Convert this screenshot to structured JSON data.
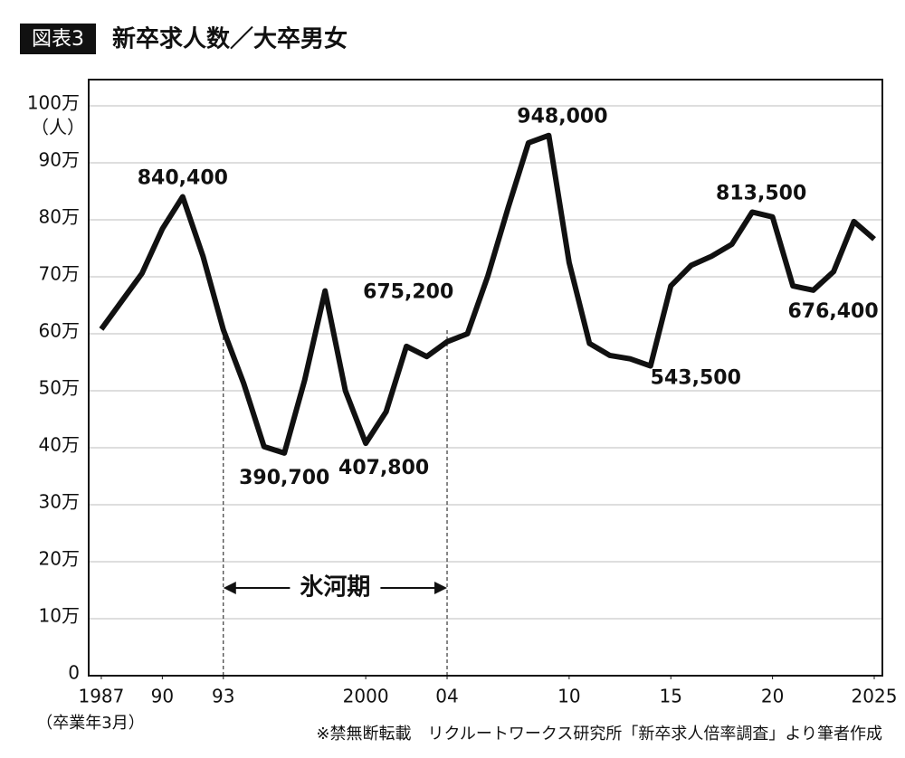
{
  "chart_data": {
    "type": "line",
    "tag": "図表3",
    "title": "新卒求人数／大卒男女",
    "y_unit": "（人）",
    "x_unit": "（卒業年3月）",
    "source": "※禁無断転載　リクルートワークス研究所「新卒求人倍率調査」より筆者作成",
    "x": [
      1987,
      1988,
      1989,
      1990,
      1991,
      1992,
      1993,
      1994,
      1995,
      1996,
      1997,
      1998,
      1999,
      2000,
      2001,
      2002,
      2003,
      2004,
      2005,
      2006,
      2007,
      2008,
      2009,
      2010,
      2011,
      2012,
      2013,
      2014,
      2015,
      2016,
      2017,
      2018,
      2019,
      2020,
      2021,
      2022,
      2023,
      2024,
      2025
    ],
    "series": [
      {
        "name": "新卒求人数",
        "color": "#111111",
        "values": [
          608000,
          657000,
          706000,
          784000,
          840400,
          736000,
          607000,
          513000,
          402000,
          390700,
          519000,
          675200,
          500000,
          407800,
          463000,
          578000,
          560000,
          586000,
          600000,
          701000,
          821000,
          935000,
          948000,
          725000,
          583000,
          562000,
          556000,
          543500,
          684000,
          720000,
          736000,
          757000,
          813500,
          805000,
          684000,
          676400,
          709000,
          797000,
          766000
        ],
        "value_labels": [
          null,
          null,
          null,
          null,
          "840,400",
          null,
          null,
          null,
          null,
          "390,700",
          null,
          "675,200",
          null,
          "407,800",
          null,
          null,
          null,
          null,
          null,
          null,
          null,
          null,
          "948,000",
          null,
          null,
          null,
          null,
          "543,500",
          null,
          null,
          null,
          null,
          "813,500",
          null,
          null,
          "676,400",
          null,
          null,
          null
        ]
      }
    ],
    "xlim": [
      1986.38,
      2025.4
    ],
    "xticks": [
      1987,
      {
        "value": 1990,
        "label": "90"
      },
      {
        "value": 1993,
        "label": "93"
      },
      2000,
      {
        "value": 2004,
        "label": "04"
      },
      {
        "value": 2010,
        "label": "10"
      },
      {
        "value": 2015,
        "label": "15"
      },
      {
        "value": 2020,
        "label": "20"
      },
      2025
    ],
    "ylim": [
      0,
      1046000
    ],
    "yticks": [
      0,
      {
        "value": 100000,
        "label": "10万"
      },
      {
        "value": 200000,
        "label": "20万"
      },
      {
        "value": 300000,
        "label": "30万"
      },
      {
        "value": 400000,
        "label": "40万"
      },
      {
        "value": 500000,
        "label": "50万"
      },
      {
        "value": 600000,
        "label": "60万"
      },
      {
        "value": 700000,
        "label": "70万"
      },
      {
        "value": 800000,
        "label": "80万"
      },
      {
        "value": 900000,
        "label": "90万"
      },
      {
        "value": 1000000,
        "label": "100万"
      }
    ],
    "grid": true,
    "period": {
      "text": "氷河期",
      "x": [
        1993,
        2004
      ]
    }
  }
}
